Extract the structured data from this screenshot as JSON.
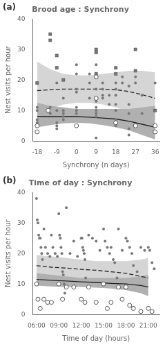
{
  "chart_data": [
    {
      "type": "line",
      "title": "Brood age : Synchrony",
      "annotation": "(a)",
      "xlabel": "Synchrony (n days)",
      "ylabel": "Nest visits per hour",
      "xlim": [
        -20,
        38
      ],
      "ylim": [
        0,
        40
      ],
      "xticks": [
        -18,
        -9,
        0,
        9,
        18,
        27,
        36
      ],
      "yticks": [
        0,
        10,
        20,
        30,
        40
      ],
      "grid": false,
      "series": [
        {
          "type": "band",
          "color": "#d5d5d5",
          "x": [
            -18,
            -12,
            -6,
            0,
            6,
            12,
            18,
            24,
            30,
            36
          ],
          "lower": [
            8.5,
            10.5,
            12.0,
            12.5,
            12.5,
            12.0,
            11.0,
            9.5,
            8.0,
            7.0
          ],
          "upper": [
            26.0,
            23.5,
            22.0,
            21.5,
            21.5,
            22.0,
            22.5,
            23.0,
            23.0,
            22.5
          ]
        },
        {
          "type": "band",
          "color": "#b0b0b0",
          "x": [
            -18,
            -12,
            -6,
            0,
            6,
            12,
            18,
            24,
            30,
            36
          ],
          "lower": [
            4.5,
            5.2,
            5.8,
            6.0,
            5.8,
            5.2,
            4.5,
            3.5,
            2.0,
            0.5
          ],
          "upper": [
            12.5,
            11.5,
            11.0,
            10.5,
            10.5,
            10.5,
            10.5,
            10.5,
            11.0,
            11.5
          ]
        },
        {
          "type": "line",
          "color": "#222222",
          "line_style": "solid",
          "x": [
            -18,
            -12,
            -6,
            0,
            6,
            12,
            18,
            24,
            30,
            36
          ],
          "values": [
            8.0,
            8.0,
            8.0,
            8.0,
            7.8,
            7.5,
            7.2,
            6.5,
            5.5,
            4.5
          ]
        },
        {
          "type": "line",
          "color": "#222222",
          "line_style": "dashed",
          "x": [
            -18,
            -12,
            -6,
            0,
            6,
            12,
            18,
            24,
            30,
            36
          ],
          "values": [
            16.5,
            16.8,
            17.0,
            17.0,
            17.0,
            17.0,
            16.8,
            16.2,
            15.2,
            14.0
          ]
        },
        {
          "type": "scatter",
          "marker": "circle",
          "color": "#777777",
          "x": [
            -18,
            -18,
            -18,
            -18,
            -12,
            -12,
            -9,
            -9,
            -9,
            -9,
            -9,
            -6,
            -6,
            -6,
            -6,
            -6,
            -6,
            0,
            0,
            0,
            0,
            0,
            0,
            0,
            6,
            6,
            6,
            9,
            9,
            9,
            9,
            9,
            9,
            9,
            9,
            9,
            12,
            12,
            12,
            12,
            15,
            15,
            18,
            18,
            18,
            18,
            18,
            18,
            18,
            21,
            21,
            24,
            24,
            24,
            24,
            24,
            27,
            27,
            30,
            30,
            36,
            36
          ],
          "values": [
            11,
            10,
            7,
            6,
            11,
            9,
            19,
            10,
            6,
            5,
            4,
            20,
            14,
            10,
            9,
            8,
            7,
            25,
            22,
            17,
            16,
            11,
            10,
            9,
            22,
            19,
            14,
            25,
            22,
            17,
            13,
            11,
            10,
            9,
            8,
            1,
            19,
            17,
            15,
            14,
            15,
            12,
            19,
            17,
            15,
            12,
            10,
            7,
            5,
            21,
            19,
            18,
            12,
            9,
            4,
            2,
            21,
            19,
            15,
            9,
            19,
            10
          ]
        },
        {
          "type": "scatter",
          "marker": "square",
          "color": "#777777",
          "x": [
            -18,
            -12,
            -12,
            -9,
            -9,
            -6,
            9,
            9,
            9,
            18,
            18,
            27,
            27,
            36
          ],
          "values": [
            19,
            33,
            35,
            24,
            28,
            20,
            30,
            22,
            29,
            24,
            22,
            23,
            30,
            10
          ]
        },
        {
          "type": "scatter",
          "marker": "circle_open",
          "color": "#555555",
          "x": [
            -18,
            -18,
            -13,
            0,
            9,
            9,
            18,
            27,
            36,
            36
          ],
          "values": [
            5,
            3,
            10,
            5,
            21,
            14,
            6,
            5,
            5,
            3
          ]
        }
      ]
    },
    {
      "type": "line",
      "title": "Time of day : Synchrony",
      "annotation": "(b)",
      "xlabel": "Time of day (hours)",
      "ylabel": "Nest visits per hour",
      "xlim": [
        5.5,
        22.5
      ],
      "ylim": [
        0,
        40
      ],
      "xticks": [
        {
          "value": 6,
          "label": "06:00"
        },
        {
          "value": 9,
          "label": "09:00"
        },
        {
          "value": 12,
          "label": "12:00"
        },
        {
          "value": 15,
          "label": "15:00"
        },
        {
          "value": 18,
          "label": "18:00"
        },
        {
          "value": 21,
          "label": "21:00"
        }
      ],
      "yticks": [
        0,
        10,
        20,
        30,
        40
      ],
      "grid": false,
      "series": [
        {
          "type": "band",
          "color": "#d5d5d5",
          "x": [
            6,
            8,
            10,
            12,
            14,
            16,
            18,
            20,
            21
          ],
          "lower": [
            12.5,
            12.0,
            12.0,
            11.5,
            11.0,
            10.5,
            10.0,
            9.0,
            8.5
          ],
          "upper": [
            19.5,
            19.0,
            18.5,
            18.0,
            17.5,
            17.5,
            17.5,
            18.0,
            18.5
          ]
        },
        {
          "type": "band",
          "color": "#b0b0b0",
          "x": [
            6,
            8,
            10,
            12,
            14,
            16,
            18,
            20,
            21
          ],
          "lower": [
            9.5,
            9.2,
            9.0,
            9.0,
            8.8,
            8.5,
            8.0,
            7.0,
            6.0
          ],
          "upper": [
            13.5,
            13.0,
            12.5,
            12.0,
            12.0,
            12.0,
            12.0,
            12.5,
            13.0
          ]
        },
        {
          "type": "line",
          "color": "#222222",
          "line_style": "solid",
          "x": [
            6,
            8,
            10,
            12,
            14,
            16,
            18,
            20,
            21
          ],
          "values": [
            11.5,
            11.2,
            11.0,
            10.7,
            10.5,
            10.2,
            10.0,
            9.5,
            9.0
          ]
        },
        {
          "type": "line",
          "color": "#222222",
          "line_style": "dashed",
          "x": [
            6,
            8,
            10,
            12,
            14,
            16,
            18,
            20,
            21
          ],
          "values": [
            16.0,
            15.5,
            15.2,
            14.8,
            14.5,
            14.0,
            13.5,
            12.5,
            12.0
          ]
        },
        {
          "type": "scatter",
          "marker": "circle",
          "color": "#777777",
          "x": [
            6.0,
            6.1,
            6.2,
            6.3,
            6.4,
            6.5,
            6.6,
            6.7,
            6.8,
            7.0,
            7.2,
            7.5,
            7.8,
            8.0,
            8.2,
            8.5,
            8.8,
            9.0,
            9.1,
            9.2,
            9.3,
            9.4,
            9.5,
            9.6,
            9.7,
            9.8,
            10.0,
            10.5,
            11.0,
            11.5,
            12.0,
            12.1,
            12.2,
            12.3,
            12.4,
            12.5,
            12.6,
            13.0,
            13.5,
            14.0,
            14.5,
            15.0,
            15.2,
            15.5,
            15.8,
            16.0,
            16.3,
            16.5,
            16.8,
            17.0,
            17.5,
            18.0,
            18.2,
            18.5,
            18.8,
            19.0,
            19.5,
            20.0,
            20.5,
            21.0,
            21.2,
            21.5,
            21.8
          ],
          "values": [
            38,
            31,
            30,
            26,
            25,
            25,
            22,
            20,
            18,
            28,
            22,
            20,
            19,
            26,
            22,
            20,
            19,
            33,
            26,
            25,
            22,
            20,
            14,
            13,
            10,
            7,
            35,
            20,
            24,
            19,
            25,
            25,
            22,
            21,
            20,
            18,
            12,
            26,
            25,
            24,
            21,
            28,
            24,
            22,
            20,
            22,
            18,
            17,
            12,
            28,
            21,
            25,
            24,
            22,
            20,
            16,
            14,
            22,
            21,
            22,
            21,
            17,
            15
          ]
        },
        {
          "type": "scatter",
          "marker": "circle_open",
          "color": "#555555",
          "x": [
            6.0,
            6.2,
            6.5,
            7.0,
            7.5,
            8.0,
            9.0,
            9.5,
            10.0,
            11.0,
            12.0,
            12.5,
            13.0,
            14.0,
            15.0,
            15.5,
            16.0,
            17.0,
            17.5,
            18.0,
            18.5,
            19.0,
            20.0,
            21.0,
            21.5
          ],
          "values": [
            10,
            5,
            2,
            5,
            4,
            4,
            10,
            5,
            9,
            9,
            5,
            4,
            9,
            4,
            10,
            2,
            4,
            9,
            5,
            9,
            3,
            2,
            1,
            2,
            1
          ]
        }
      ]
    }
  ]
}
